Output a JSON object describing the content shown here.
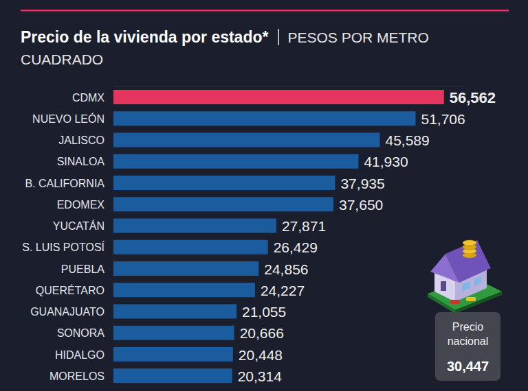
{
  "chart_data": {
    "type": "bar",
    "orientation": "horizontal",
    "title": "Precio de la vivienda por estado*",
    "subtitle": "PESOS POR METRO CUADRADO",
    "categories": [
      "CDMX",
      "NUEVO LEÓN",
      "JALISCO",
      "SINALOA",
      "B. CALIFORNIA",
      "EDOMEX",
      "YUCATÁN",
      "S. LUIS POTOSÍ",
      "PUEBLA",
      "QUERÉTARO",
      "GUANAJUATO",
      "SONORA",
      "HIDALGO",
      "MORELOS"
    ],
    "values": [
      56562,
      51706,
      45589,
      41930,
      37935,
      37650,
      27871,
      26429,
      24856,
      24227,
      21055,
      20666,
      20448,
      20314
    ],
    "value_labels": [
      "56,562",
      "51,706",
      "45,589",
      "41,930",
      "37,935",
      "37,650",
      "27,871",
      "26,429",
      "24,856",
      "24,227",
      "21,055",
      "20,666",
      "20,448",
      "20,314"
    ],
    "colors": [
      "#e5345d",
      "#1b5c9f",
      "#1b5c9f",
      "#1b5c9f",
      "#1b5c9f",
      "#1b5c9f",
      "#1b5c9f",
      "#1b5c9f",
      "#1b5c9f",
      "#1b5c9f",
      "#1b5c9f",
      "#1b5c9f",
      "#1b5c9f",
      "#1b5c9f"
    ],
    "xlim": [
      0,
      60000
    ],
    "xticks": [],
    "tick_labels": false,
    "data_labels": true,
    "grid": false,
    "annotations": [
      {
        "text": "Precio nacional",
        "value": 30447,
        "label": "30,447"
      }
    ]
  }
}
